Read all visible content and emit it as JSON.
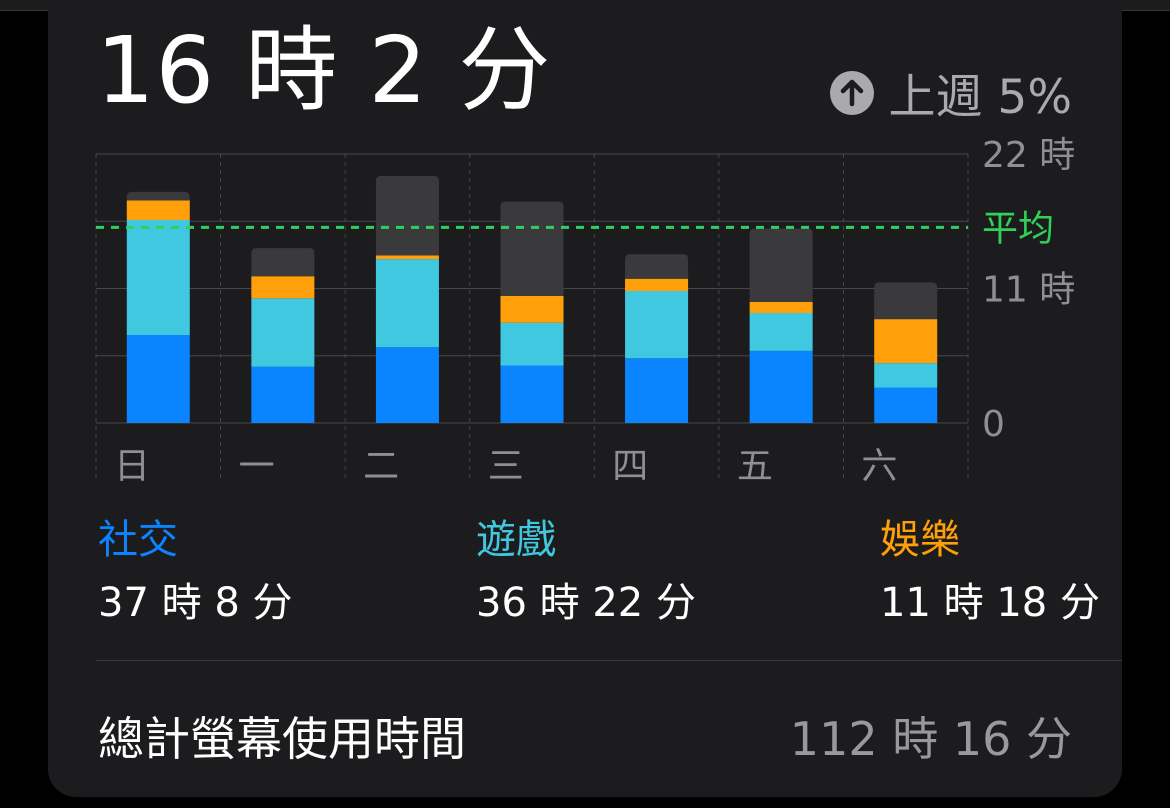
{
  "header": {
    "daily_average": "16 時 2 分",
    "change_text": "上週 5%"
  },
  "colors": {
    "social": "#0a84ff",
    "games": "#40c8e0",
    "entertainment": "#ff9f0a",
    "other": "#3a3a3c",
    "average_line": "#30d158",
    "grid": "#48484a",
    "axis_text": "#8e8e93"
  },
  "chart_data": {
    "type": "bar",
    "stacked": true,
    "categories": [
      "日",
      "一",
      "二",
      "三",
      "四",
      "五",
      "六"
    ],
    "y_ticks": [
      {
        "value": 22,
        "label": "22 時"
      },
      {
        "value": 11,
        "label": "11 時"
      },
      {
        "value": 0,
        "label": "0"
      }
    ],
    "ylim": [
      0,
      22
    ],
    "average": {
      "value": 16.0,
      "label": "平均"
    },
    "series": [
      {
        "name": "社交",
        "key": "social",
        "values": [
          7.2,
          4.6,
          6.2,
          4.7,
          5.3,
          5.9,
          2.9
        ]
      },
      {
        "name": "遊戲",
        "key": "games",
        "values": [
          9.4,
          5.6,
          7.2,
          3.5,
          5.5,
          3.1,
          2.0
        ]
      },
      {
        "name": "娛樂",
        "key": "entertainment",
        "values": [
          1.6,
          1.8,
          0.3,
          2.2,
          1.0,
          0.9,
          3.6
        ]
      },
      {
        "name": "",
        "key": "other",
        "values": [
          0.7,
          2.3,
          6.5,
          7.7,
          2.0,
          6.0,
          3.0
        ]
      }
    ],
    "grid": true,
    "legend_position": "bottom"
  },
  "legend": [
    {
      "name": "社交",
      "value": "37 時 8 分"
    },
    {
      "name": "遊戲",
      "value": "36 時 22 分"
    },
    {
      "name": "娛樂",
      "value": "11 時 18 分"
    }
  ],
  "footer": {
    "label": "總計螢幕使用時間",
    "value": "112 時 16 分"
  }
}
